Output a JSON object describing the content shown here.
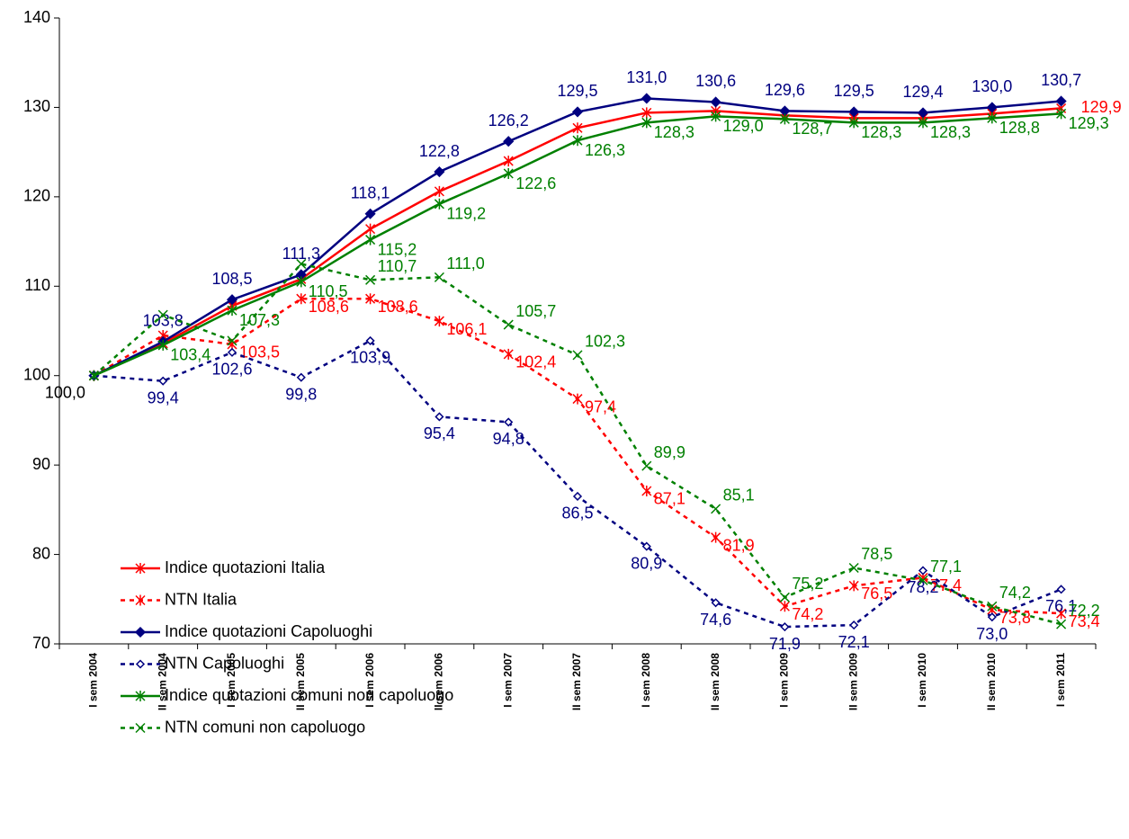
{
  "chart_data": {
    "type": "line",
    "categories": [
      "I sem 2004",
      "II sem 2004",
      "I sem 2005",
      "II sem 2005",
      "I sem 2006",
      "II sem 2006",
      "I sem 2007",
      "II sem 2007",
      "I sem 2008",
      "II sem 2008",
      "I sem 2009",
      "II sem 2009",
      "I sem 2010",
      "II sem 2010",
      "I sem 2011"
    ],
    "ylim": [
      70,
      140
    ],
    "yticks": [
      70,
      80,
      90,
      100,
      110,
      120,
      130,
      140
    ],
    "series": [
      {
        "name": "Indice quotazioni Italia",
        "color": "#ff0000",
        "dashed": false,
        "marker": "star",
        "values": [
          100.0,
          103.6,
          107.8,
          110.8,
          116.4,
          120.6,
          124.0,
          127.7,
          129.4,
          129.6,
          129.1,
          128.8,
          128.8,
          129.3,
          129.9
        ],
        "value_labels": [
          null,
          null,
          null,
          null,
          null,
          null,
          null,
          null,
          null,
          null,
          null,
          null,
          null,
          null,
          "129,9"
        ]
      },
      {
        "name": "NTN Italia",
        "color": "#ff0000",
        "dashed": true,
        "marker": "star",
        "values": [
          100.0,
          104.5,
          103.5,
          108.6,
          108.6,
          106.1,
          102.4,
          97.4,
          87.1,
          81.9,
          74.2,
          76.5,
          77.4,
          73.8,
          73.4
        ],
        "value_labels": [
          null,
          null,
          "103,5",
          "108,6",
          "108,6",
          "106,1",
          "102,4",
          "97,4",
          "87,1",
          "81,9",
          "74,2",
          "76,5",
          "77,4",
          "73,8",
          "73,4"
        ]
      },
      {
        "name": "Indice quotazioni Capoluoghi",
        "color": "#000080",
        "dashed": false,
        "marker": "diamond",
        "values": [
          100.0,
          103.8,
          108.5,
          111.3,
          118.1,
          122.8,
          126.2,
          129.5,
          131.0,
          130.6,
          129.6,
          129.5,
          129.4,
          130.0,
          130.7
        ],
        "value_labels": [
          "100,0",
          "103,8",
          "108,5",
          "111,3",
          "118,1",
          "122,8",
          "126,2",
          "129,5",
          "131,0",
          "130,6",
          "129,6",
          "129,5",
          "129,4",
          "130,0",
          "130,7"
        ]
      },
      {
        "name": "NTN Capoluoghi",
        "color": "#000080",
        "dashed": true,
        "marker": "hollow-diamond",
        "values": [
          100.0,
          99.4,
          102.6,
          99.8,
          103.9,
          95.4,
          94.8,
          86.5,
          80.9,
          74.6,
          71.9,
          72.1,
          78.2,
          73.0,
          76.1
        ],
        "value_labels": [
          null,
          "99,4",
          "102,6",
          "99,8",
          "103,9",
          "95,4",
          "94,8",
          "86,5",
          "80,9",
          "74,6",
          "71,9",
          "72,1",
          "78,2",
          "73,0",
          "76,1"
        ]
      },
      {
        "name": "Indice quotazioni comuni non capoluogo",
        "color": "#008000",
        "dashed": false,
        "marker": "star",
        "values": [
          100.0,
          103.4,
          107.3,
          110.5,
          115.2,
          119.2,
          122.6,
          126.3,
          128.3,
          129.0,
          128.7,
          128.3,
          128.3,
          128.8,
          129.3
        ],
        "value_labels": [
          null,
          "103,4",
          "107,3",
          "110,5",
          "115,2",
          "119,2",
          "122,6",
          "126,3",
          "128,3",
          "129,0",
          "128,7",
          "128,3",
          "128,3",
          "128,8",
          "129,3"
        ]
      },
      {
        "name": "NTN comuni non capoluogo",
        "color": "#008000",
        "dashed": true,
        "marker": "x",
        "values": [
          100.0,
          106.8,
          103.9,
          112.5,
          110.7,
          111.0,
          105.7,
          102.3,
          89.9,
          85.1,
          75.2,
          78.5,
          77.1,
          74.2,
          72.2
        ],
        "value_labels": [
          null,
          null,
          null,
          null,
          "110,7",
          "111,0",
          "105,7",
          "102,3",
          "89,9",
          "85,1",
          "75,2",
          "78,5",
          "77,1",
          "74,2",
          "72,2"
        ]
      }
    ]
  }
}
